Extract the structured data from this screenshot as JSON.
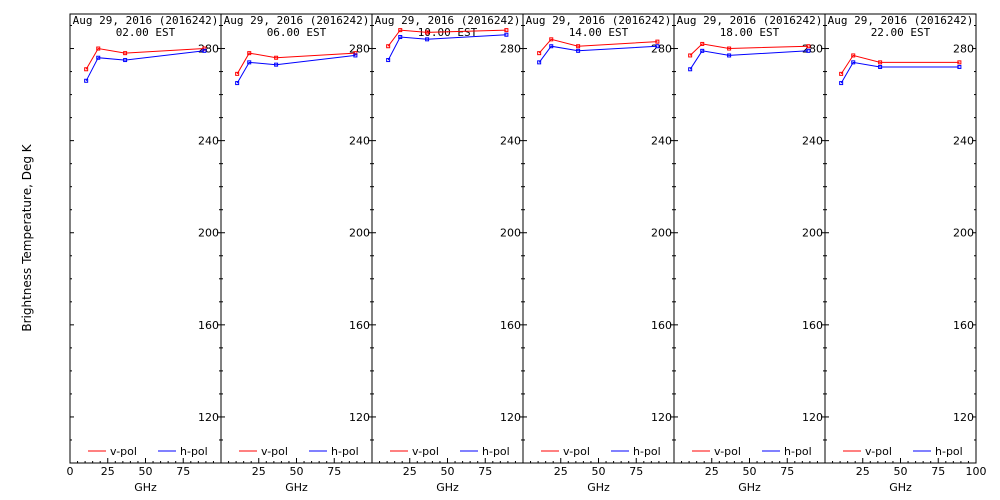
{
  "chart_data": {
    "type": "line",
    "ylabel": "Brightness Temperature, Deg K",
    "colors": {
      "v-pol": "#ff0000",
      "h-pol": "#0000ff"
    },
    "panels": [
      {
        "title": "Aug 29, 2016 (2016242)",
        "subtitle": "02.00 EST",
        "xlabel": "GHz",
        "xlim": [
          0,
          100
        ],
        "ylim": [
          100,
          295
        ],
        "xticks": [
          0,
          25,
          50,
          75
        ],
        "yticks": [
          120,
          160,
          200,
          240,
          280
        ],
        "legend": [
          "v-pol",
          "h-pol"
        ],
        "x": [
          10.7,
          18.7,
          36.5,
          89.0
        ],
        "series": [
          {
            "name": "v-pol",
            "values": [
              271,
              280,
              278,
              280
            ]
          },
          {
            "name": "h-pol",
            "values": [
              266,
              276,
              275,
              279
            ]
          }
        ]
      },
      {
        "title": "Aug 29, 2016 (2016242)",
        "subtitle": "06.00 EST",
        "xlabel": "GHz",
        "xlim": [
          0,
          100
        ],
        "ylim": [
          100,
          295
        ],
        "xticks": [
          25,
          50,
          75
        ],
        "yticks": [
          120,
          160,
          200,
          240,
          280
        ],
        "legend": [
          "v-pol",
          "h-pol"
        ],
        "x": [
          10.7,
          18.7,
          36.5,
          89.0
        ],
        "series": [
          {
            "name": "v-pol",
            "values": [
              269,
              278,
              276,
              278
            ]
          },
          {
            "name": "h-pol",
            "values": [
              265,
              274,
              273,
              277
            ]
          }
        ]
      },
      {
        "title": "Aug 29, 2016 (2016242)",
        "subtitle": "10.00 EST",
        "xlabel": "GHz",
        "xlim": [
          0,
          100
        ],
        "ylim": [
          100,
          295
        ],
        "xticks": [
          25,
          50,
          75
        ],
        "yticks": [
          120,
          160,
          200,
          240,
          280
        ],
        "legend": [
          "v-pol",
          "h-pol"
        ],
        "x": [
          10.7,
          18.7,
          36.5,
          89.0
        ],
        "series": [
          {
            "name": "v-pol",
            "values": [
              281,
              288,
              287,
              288
            ]
          },
          {
            "name": "h-pol",
            "values": [
              275,
              285,
              284,
              286
            ]
          }
        ]
      },
      {
        "title": "Aug 29, 2016 (2016242)",
        "subtitle": "14.00 EST",
        "xlabel": "GHz",
        "xlim": [
          0,
          100
        ],
        "ylim": [
          100,
          295
        ],
        "xticks": [
          25,
          50,
          75
        ],
        "yticks": [
          120,
          160,
          200,
          240,
          280
        ],
        "legend": [
          "v-pol",
          "h-pol"
        ],
        "x": [
          10.7,
          18.7,
          36.5,
          89.0
        ],
        "series": [
          {
            "name": "v-pol",
            "values": [
              278,
              284,
              281,
              283
            ]
          },
          {
            "name": "h-pol",
            "values": [
              274,
              281,
              279,
              281
            ]
          }
        ]
      },
      {
        "title": "Aug 29, 2016 (2016242)",
        "subtitle": "18.00 EST",
        "xlabel": "GHz",
        "xlim": [
          0,
          100
        ],
        "ylim": [
          100,
          295
        ],
        "xticks": [
          25,
          50,
          75
        ],
        "yticks": [
          120,
          160,
          200,
          240,
          280
        ],
        "legend": [
          "v-pol",
          "h-pol"
        ],
        "x": [
          10.7,
          18.7,
          36.5,
          89.0
        ],
        "series": [
          {
            "name": "v-pol",
            "values": [
              277,
              282,
              280,
              281
            ]
          },
          {
            "name": "h-pol",
            "values": [
              271,
              279,
              277,
              279
            ]
          }
        ]
      },
      {
        "title": "Aug 29, 2016 (2016242)",
        "subtitle": "22.00 EST",
        "xlabel": "GHz",
        "xlim": [
          0,
          100
        ],
        "ylim": [
          100,
          295
        ],
        "xticks": [
          25,
          50,
          75,
          100
        ],
        "yticks": [
          120,
          160,
          200,
          240,
          280
        ],
        "legend": [
          "v-pol",
          "h-pol"
        ],
        "x": [
          10.7,
          18.7,
          36.5,
          89.0
        ],
        "series": [
          {
            "name": "v-pol",
            "values": [
              269,
              277,
              274,
              274
            ]
          },
          {
            "name": "h-pol",
            "values": [
              265,
              274,
              272,
              272
            ]
          }
        ]
      }
    ]
  }
}
